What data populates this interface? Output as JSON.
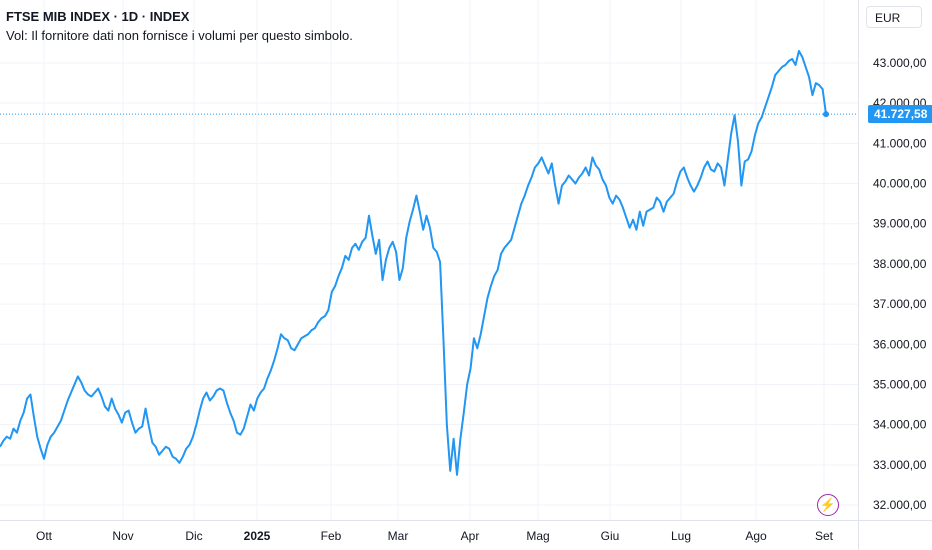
{
  "header": {
    "title": "FTSE MIB INDEX · 1D · INDEX",
    "subtitle": "Vol: Il fornitore dati non fornisce i volumi per questo simbolo."
  },
  "currency_label": "EUR",
  "last_price_label": "41.727,58",
  "colors": {
    "line": "#2196f3",
    "grid": "#f0f3fa",
    "text": "#131722",
    "flash": "#9c27b0"
  },
  "icons": {
    "flash": "lightning-icon"
  },
  "chart_data": {
    "type": "line",
    "x_labels": [
      "Ott",
      "Nov",
      "Dic",
      "2025",
      "Feb",
      "Mar",
      "Apr",
      "Mag",
      "Giu",
      "Lug",
      "Ago",
      "Set"
    ],
    "y_tick_labels": [
      "43.000,00",
      "42.000,00",
      "41.000,00",
      "40.000,00",
      "39.000,00",
      "38.000,00",
      "37.000,00",
      "36.000,00",
      "35.000,00",
      "34.000,00",
      "33.000,00",
      "32.000,00"
    ],
    "y_ticks": [
      43000,
      42000,
      41000,
      40000,
      39000,
      38000,
      37000,
      36000,
      35000,
      34000,
      33000,
      32000
    ],
    "ylim": [
      31750,
      43700
    ],
    "grid": true,
    "last_value": 41727.58,
    "series": [
      {
        "values": [
          33450,
          33600,
          33700,
          33650,
          33900,
          33800,
          34100,
          34300,
          34650,
          34750,
          34200,
          33700,
          33400,
          33150,
          33500,
          33700,
          33800,
          33950,
          34100,
          34350,
          34600,
          34800,
          35000,
          35200,
          35050,
          34850,
          34750,
          34700,
          34800,
          34900,
          34700,
          34450,
          34350,
          34650,
          34400,
          34250,
          34050,
          34300,
          34350,
          34050,
          33800,
          33900,
          33950,
          34400,
          33950,
          33550,
          33450,
          33250,
          33350,
          33450,
          33400,
          33200,
          33150,
          33050,
          33200,
          33400,
          33500,
          33700,
          34000,
          34350,
          34650,
          34800,
          34600,
          34700,
          34850,
          34900,
          34850,
          34550,
          34300,
          34100,
          33800,
          33750,
          33900,
          34200,
          34500,
          34350,
          34650,
          34800,
          34900,
          35150,
          35350,
          35600,
          35900,
          36250,
          36150,
          36100,
          35900,
          35850,
          36000,
          36150,
          36200,
          36250,
          36350,
          36400,
          36550,
          36650,
          36700,
          36850,
          37300,
          37450,
          37700,
          37900,
          38200,
          38100,
          38400,
          38500,
          38350,
          38550,
          38650,
          39200,
          38700,
          38250,
          38600,
          37600,
          38100,
          38400,
          38550,
          38300,
          37600,
          37900,
          38650,
          39050,
          39350,
          39700,
          39300,
          38850,
          39200,
          38900,
          38400,
          38300,
          38050,
          36100,
          34000,
          32850,
          33650,
          32750,
          33650,
          34300,
          35000,
          35400,
          36150,
          35900,
          36250,
          36700,
          37150,
          37450,
          37700,
          37850,
          38250,
          38400,
          38500,
          38600,
          38900,
          39200,
          39500,
          39700,
          39950,
          40150,
          40400,
          40500,
          40650,
          40450,
          40250,
          40500,
          39950,
          39500,
          39950,
          40050,
          40200,
          40100,
          40000,
          40150,
          40250,
          40400,
          40200,
          40650,
          40450,
          40350,
          40100,
          39950,
          39650,
          39500,
          39700,
          39600,
          39400,
          39150,
          38900,
          39100,
          38850,
          39300,
          38950,
          39300,
          39350,
          39400,
          39650,
          39550,
          39300,
          39550,
          39650,
          39750,
          40050,
          40300,
          40400,
          40150,
          39950,
          39800,
          39950,
          40150,
          40400,
          40550,
          40350,
          40300,
          40500,
          40400,
          39950,
          40600,
          41250,
          41700,
          41050,
          39950,
          40550,
          40600,
          40800,
          41200,
          41500,
          41650,
          41900,
          42150,
          42400,
          42700,
          42800,
          42900,
          42950,
          43050,
          43100,
          42950,
          43300,
          43150,
          42900,
          42650,
          42200,
          42500,
          42450,
          42350,
          41727.58
        ]
      }
    ]
  }
}
